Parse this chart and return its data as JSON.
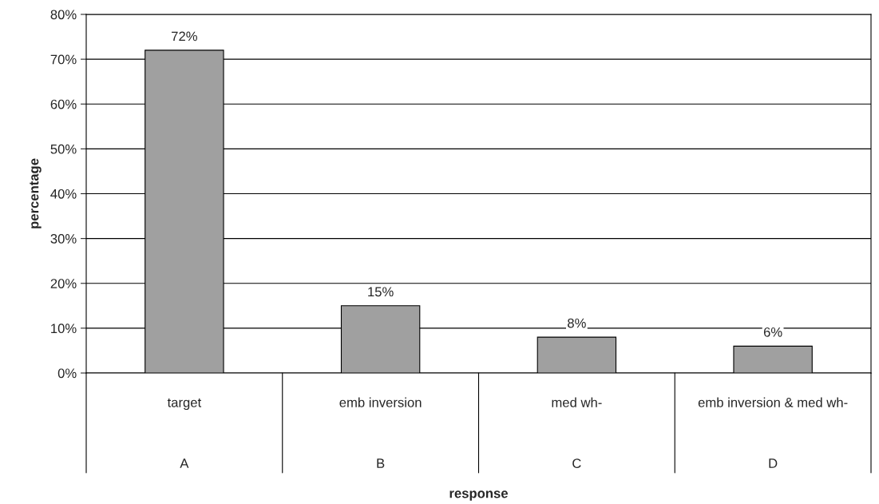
{
  "chart_data": {
    "type": "bar",
    "ylabel": "percentage",
    "categories": [
      "target",
      "emb inversion",
      "med wh-",
      "emb inversion & med wh-"
    ],
    "values": [
      72,
      15,
      8,
      6
    ],
    "value_labels": [
      "72%",
      "15%",
      "8%",
      "6%"
    ],
    "color": "#a0a0a0",
    "ylim": [
      0,
      80
    ],
    "yticks": [
      {
        "value": 0,
        "label": "0%"
      },
      {
        "value": 10,
        "label": "10%"
      },
      {
        "value": 20,
        "label": "20%"
      },
      {
        "value": 30,
        "label": "30%"
      },
      {
        "value": 40,
        "label": "40%"
      },
      {
        "value": 50,
        "label": "50%"
      },
      {
        "value": 60,
        "label": "60%"
      },
      {
        "value": 70,
        "label": "70%"
      },
      {
        "value": 80,
        "label": "80%"
      }
    ],
    "grid": "y",
    "annotations": [
      "A",
      "B",
      "C",
      "D",
      "response"
    ]
  }
}
